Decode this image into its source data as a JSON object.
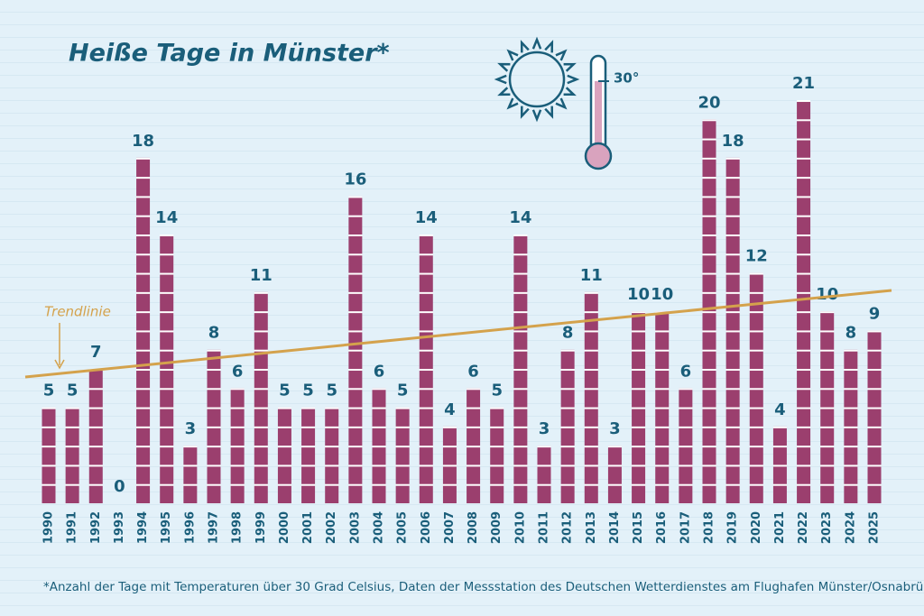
{
  "chart_data": {
    "type": "bar",
    "title": "Heiße Tage in Münster*",
    "categories": [
      "1990",
      "1991",
      "1992",
      "1993",
      "1994",
      "1995",
      "1996",
      "1997",
      "1998",
      "1999",
      "2000",
      "2001",
      "2002",
      "2003",
      "2004",
      "2005",
      "2006",
      "2007",
      "2008",
      "2009",
      "2010",
      "2011",
      "2012",
      "2013",
      "2014",
      "2015",
      "2016",
      "2017",
      "2018",
      "2019",
      "2020",
      "2021",
      "2022",
      "2023",
      "2024",
      "2025"
    ],
    "values": [
      5,
      5,
      7,
      0,
      18,
      14,
      3,
      8,
      6,
      11,
      5,
      5,
      5,
      16,
      6,
      5,
      14,
      4,
      6,
      5,
      14,
      3,
      8,
      11,
      3,
      10,
      10,
      6,
      20,
      18,
      12,
      4,
      21,
      10,
      8,
      9
    ],
    "color": "#9b3f6e",
    "ylim": [
      0,
      21
    ],
    "trendline": {
      "label": "Trendlinie",
      "values": [
        6.7,
        11.0
      ],
      "color": "#d4a24c"
    },
    "icon_label": "30°",
    "footnote": "*Anzahl der Tage mit Temperaturen über 30 Grad Celsius, Daten der Messstation des Deutschen Wetterdienstes am Flughafen Münster/Osnabrück"
  }
}
